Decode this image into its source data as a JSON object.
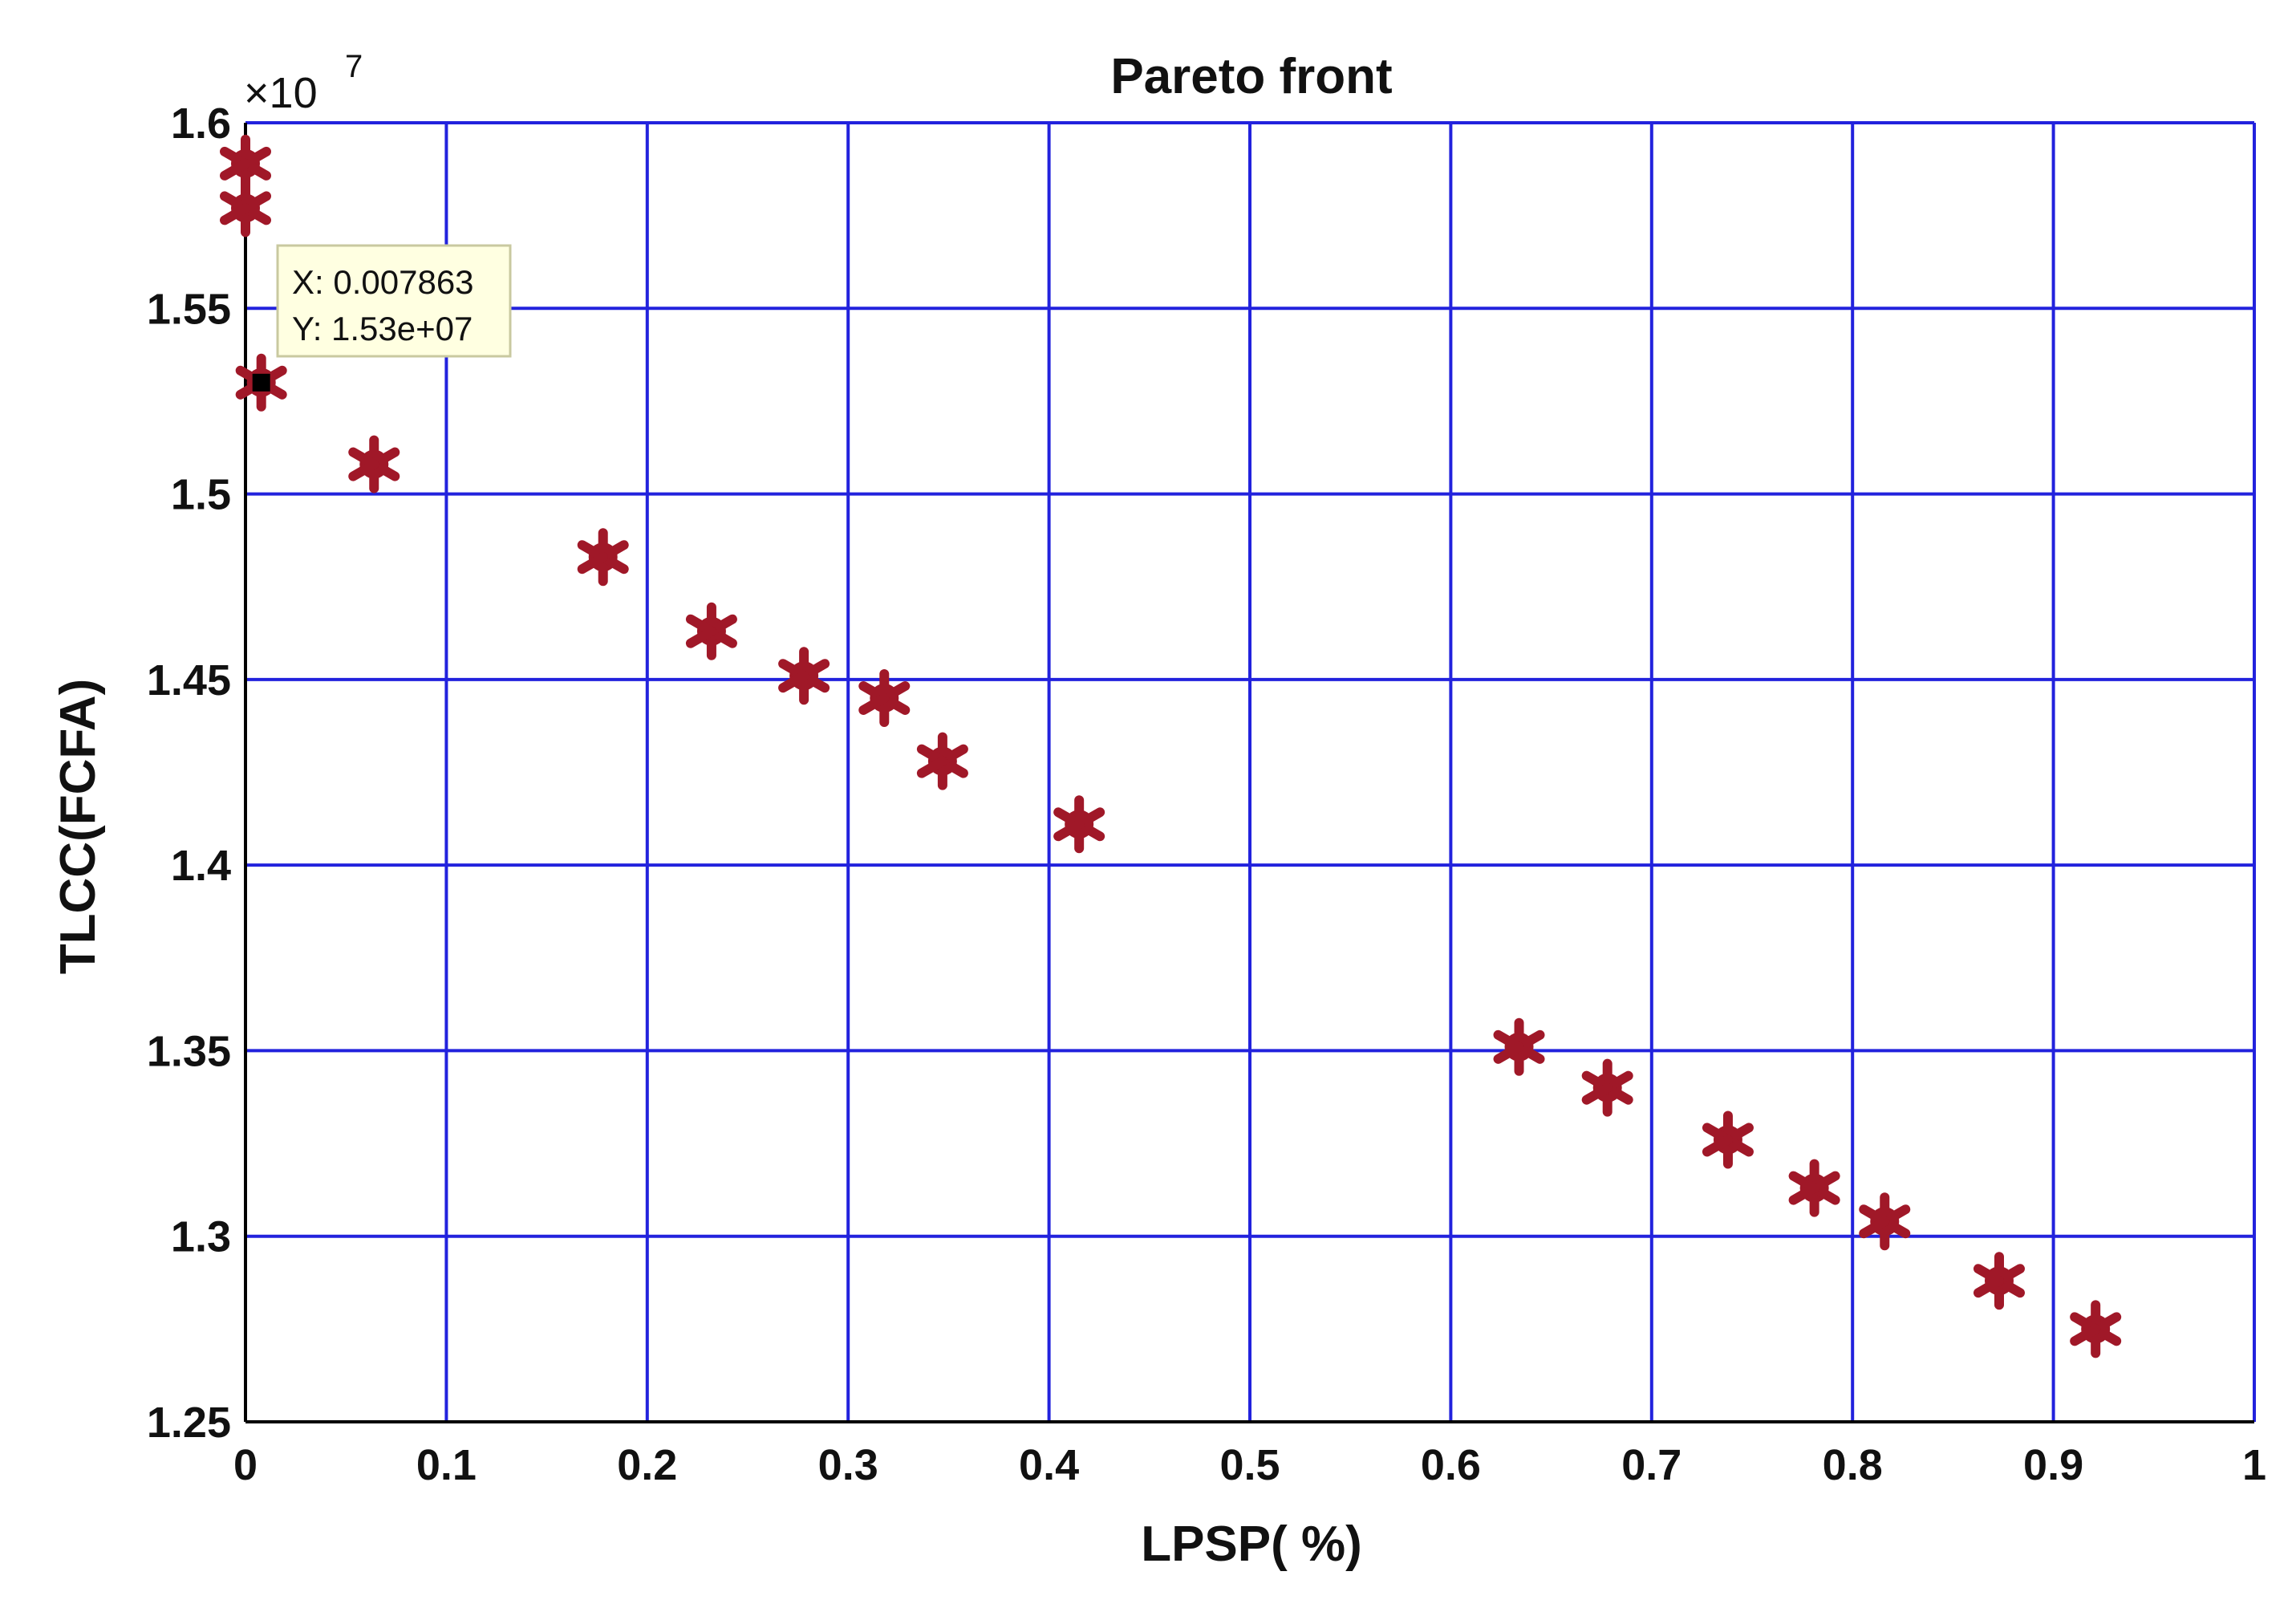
{
  "chart_data": {
    "type": "scatter",
    "title": "Pareto front",
    "xlabel": "LPSP( %)",
    "ylabel": "TLCC(FCFA)",
    "y_multiplier": "×10",
    "y_exponent": "7",
    "xlim": [
      0,
      1
    ],
    "ylim": [
      1.25,
      1.6
    ],
    "x_ticks": [
      "0",
      "0.1",
      "0.2",
      "0.3",
      "0.4",
      "0.5",
      "0.6",
      "0.7",
      "0.8",
      "0.9",
      "1"
    ],
    "y_ticks": [
      "1.25",
      "1.3",
      "1.35",
      "1.4",
      "1.45",
      "1.5",
      "1.55",
      "1.6"
    ],
    "grid": true,
    "colors": {
      "grid": "#2222dd",
      "marker": "#a01828",
      "axes": "#000000"
    },
    "points": [
      {
        "x": 0.0,
        "y": 1.589
      },
      {
        "x": 0.0,
        "y": 1.577
      },
      {
        "x": 0.007863,
        "y": 1.53
      },
      {
        "x": 0.064,
        "y": 1.508
      },
      {
        "x": 0.178,
        "y": 1.483
      },
      {
        "x": 0.232,
        "y": 1.463
      },
      {
        "x": 0.278,
        "y": 1.451
      },
      {
        "x": 0.318,
        "y": 1.445
      },
      {
        "x": 0.347,
        "y": 1.428
      },
      {
        "x": 0.415,
        "y": 1.411
      },
      {
        "x": 0.634,
        "y": 1.351
      },
      {
        "x": 0.678,
        "y": 1.34
      },
      {
        "x": 0.738,
        "y": 1.326
      },
      {
        "x": 0.781,
        "y": 1.313
      },
      {
        "x": 0.816,
        "y": 1.304
      },
      {
        "x": 0.873,
        "y": 1.288
      },
      {
        "x": 0.921,
        "y": 1.275
      }
    ],
    "datatip": {
      "x_text": "X: 0.007863",
      "y_text": "Y: 1.53e+07",
      "x": 0.007863,
      "y": 1.53
    }
  }
}
